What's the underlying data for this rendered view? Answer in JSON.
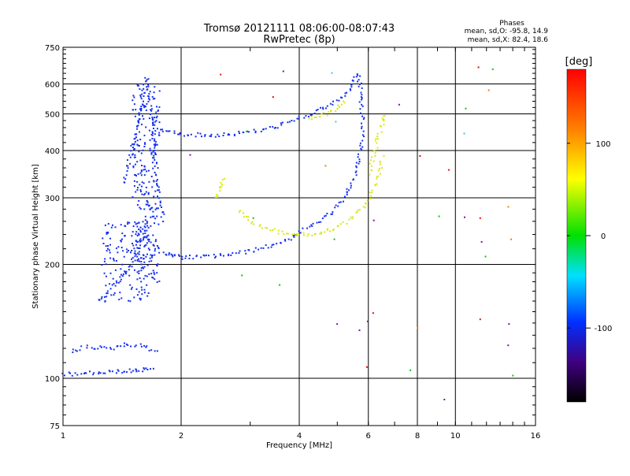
{
  "chart_data": {
    "type": "scatter",
    "title": "Tromsø 20121111 08:06:00-08:07:43",
    "subtitle": "RwPretec (8p)",
    "xlabel": "Frequency [MHz]",
    "ylabel": "Stationary phase Virtual Height [km]",
    "x_scale": "log",
    "y_scale": "log",
    "xlim": [
      1,
      16
    ],
    "ylim": [
      75,
      750
    ],
    "x_ticks": [
      1,
      2,
      4,
      6,
      8,
      10,
      16
    ],
    "x_tick_labels": [
      "1",
      "2",
      "4",
      "6",
      "8",
      "10",
      "16"
    ],
    "y_ticks": [
      75,
      100,
      200,
      300,
      400,
      500,
      600,
      750
    ],
    "y_tick_labels": [
      "75",
      "100",
      "200",
      "300",
      "400",
      "500",
      "600",
      "750"
    ],
    "grid": true,
    "stats": {
      "header": "Phases",
      "line_o": "mean, sd,O: -95.8, 14.9",
      "line_x": "mean, sd,X:  82.4, 18.6"
    },
    "colorbar": {
      "label": "[deg]",
      "range": [
        -180,
        180
      ],
      "ticks": [
        100,
        0,
        -100
      ],
      "tick_labels": [
        "100",
        "0",
        "-100"
      ]
    },
    "colors": {
      "o_mode": "#1530f0",
      "x_mode": "#d8e818",
      "noise": [
        "#e01010",
        "#f08000",
        "#10c010",
        "#30c8f0",
        "#8010a0"
      ]
    },
    "series": [
      {
        "mode": "O",
        "phase_deg": -95.8,
        "segments": [
          {
            "x": [
              1.42,
              1.55,
              1.6,
              1.62,
              1.65,
              1.68,
              1.7,
              1.72,
              1.75,
              1.8
            ],
            "y": [
              330,
              480,
              560,
              630,
              580,
              480,
              420,
              360,
              300,
              260
            ]
          },
          {
            "x": [
              1.22,
              1.3,
              1.4,
              1.48,
              1.55,
              1.6,
              1.65
            ],
            "y": [
              160,
              172,
              185,
              200,
              220,
              240,
              260
            ]
          },
          {
            "x": [
              1.6,
              1.7,
              1.8,
              1.9,
              2.0,
              2.2,
              2.5,
              2.8,
              3.1
            ],
            "y": [
              240,
              225,
              215,
              212,
              210,
              210,
              212,
              215,
              220
            ]
          },
          {
            "x": [
              3.1,
              3.5,
              3.9,
              4.3,
              4.8,
              5.2,
              5.5,
              5.7,
              5.8
            ],
            "y": [
              220,
              228,
              240,
              255,
              275,
              300,
              340,
              400,
              470
            ]
          },
          {
            "x": [
              1.75,
              2.0,
              2.3,
              2.7,
              3.2,
              3.6,
              4.0,
              4.4,
              4.8
            ],
            "y": [
              455,
              445,
              440,
              445,
              455,
              470,
              490,
              510,
              530
            ]
          },
          {
            "x": [
              4.8,
              5.2,
              5.45,
              5.6,
              5.7,
              5.75,
              5.8
            ],
            "y": [
              530,
              560,
              600,
              640,
              600,
              520,
              470
            ]
          },
          {
            "x": [
              1.0,
              1.1,
              1.2,
              1.3,
              1.4,
              1.5,
              1.6,
              1.7
            ],
            "y": [
              103,
              103,
              104,
              104,
              105,
              105,
              106,
              106
            ]
          },
          {
            "x": [
              1.05,
              1.15,
              1.3,
              1.45,
              1.6,
              1.75
            ],
            "y": [
              118,
              122,
              120,
              124,
              122,
              118
            ]
          }
        ]
      },
      {
        "mode": "X",
        "phase_deg": 82.4,
        "segments": [
          {
            "x": [
              2.8,
              3.0,
              3.3,
              3.6,
              4.0,
              4.4,
              4.8,
              5.2,
              5.6,
              6.0,
              6.3,
              6.5
            ],
            "y": [
              280,
              260,
              250,
              244,
              240,
              242,
              248,
              258,
              275,
              300,
              340,
              390
            ]
          },
          {
            "x": [
              6.0,
              6.2,
              6.35,
              6.5,
              6.6
            ],
            "y": [
              350,
              400,
              440,
              480,
              500
            ]
          },
          {
            "x": [
              2.45,
              2.5,
              2.55
            ],
            "y": [
              300,
              320,
              340
            ]
          },
          {
            "x": [
              4.2,
              4.6,
              5.0,
              5.3
            ],
            "y": [
              490,
              500,
              520,
              545
            ]
          }
        ]
      }
    ]
  }
}
